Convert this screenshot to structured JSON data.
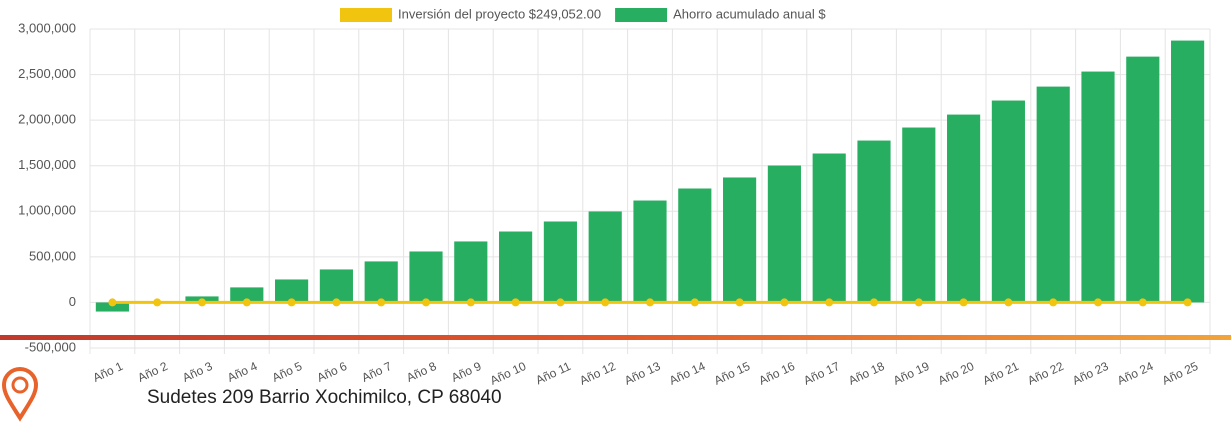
{
  "chart_data": {
    "type": "bar",
    "categories": [
      "Año 1",
      "Año 2",
      "Año 3",
      "Año 4",
      "Año 5",
      "Año 6",
      "Año 7",
      "Año 8",
      "Año 9",
      "Año 10",
      "Año 11",
      "Año 12",
      "Año 13",
      "Año 14",
      "Año 15",
      "Año 16",
      "Año 17",
      "Año 18",
      "Año 19",
      "Año 20",
      "Año 21",
      "Año 22",
      "Año 23",
      "Año 24",
      "Año 25"
    ],
    "series": [
      {
        "name": "Inversión del proyecto $249,052.00",
        "color": "#f1c40f",
        "type": "line",
        "values": [
          0,
          0,
          0,
          0,
          0,
          0,
          0,
          0,
          0,
          0,
          0,
          0,
          0,
          0,
          0,
          0,
          0,
          0,
          0,
          0,
          0,
          0,
          0,
          0,
          0
        ]
      },
      {
        "name": "Ahorro acumulado anual $",
        "color": "#27ae60",
        "type": "bar",
        "values": [
          -100000,
          -10000,
          66000,
          165000,
          252000,
          362000,
          450000,
          559000,
          669000,
          778000,
          888000,
          998000,
          1118000,
          1250000,
          1371000,
          1502000,
          1634000,
          1776000,
          1919000,
          2061000,
          2215000,
          2368000,
          2533000,
          2697000,
          2873000
        ]
      }
    ],
    "ylim": [
      -500000,
      3000000
    ],
    "yticks": [
      {
        "value": -500000,
        "label": "-500,000"
      },
      0,
      {
        "value": 500000,
        "label": "500,000"
      },
      {
        "value": 1000000,
        "label": "1,000,000"
      },
      {
        "value": 1500000,
        "label": "1,500,000"
      },
      {
        "value": 2000000,
        "label": "2,000,000"
      },
      {
        "value": 2500000,
        "label": "2,500,000"
      },
      {
        "value": 3000000,
        "label": "3,000,000"
      }
    ],
    "grid": true,
    "legend": "top"
  },
  "address": "Sudetes 209 Barrio Xochimilco, CP 68040"
}
